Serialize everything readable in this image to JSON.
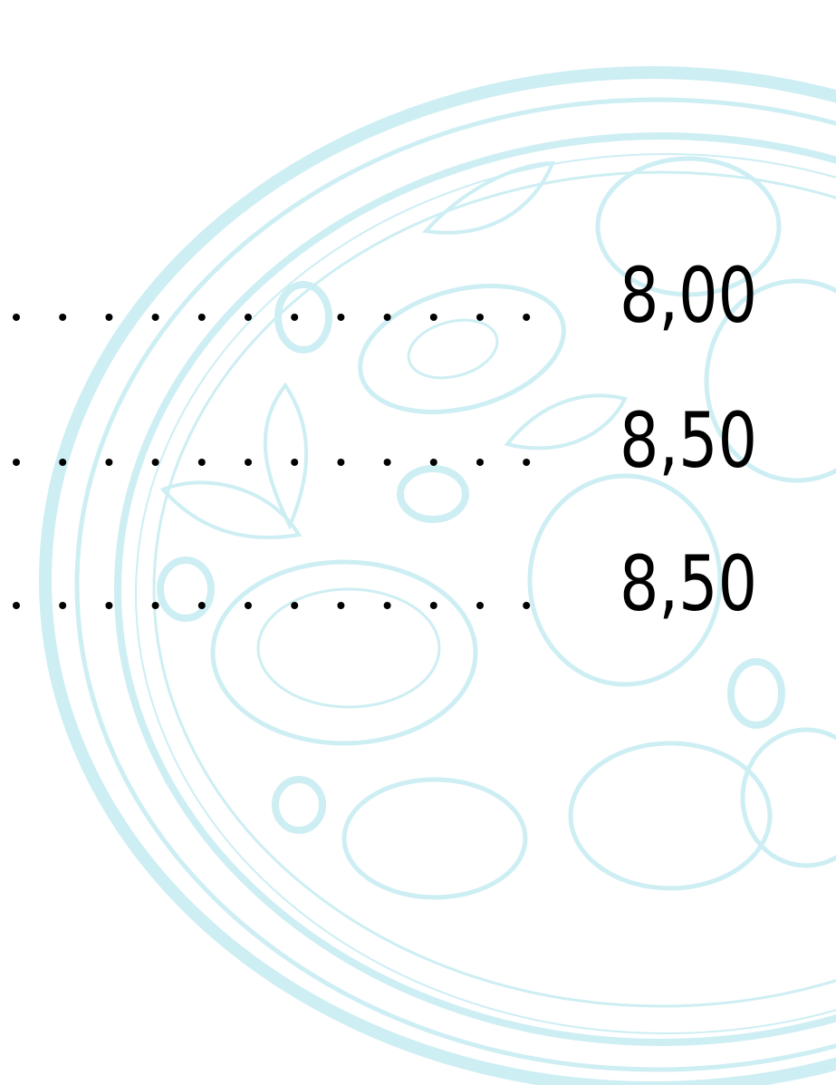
{
  "menu": {
    "items": [
      {
        "price": "8,00"
      },
      {
        "price": "8,50"
      },
      {
        "price": "8,50"
      }
    ]
  }
}
